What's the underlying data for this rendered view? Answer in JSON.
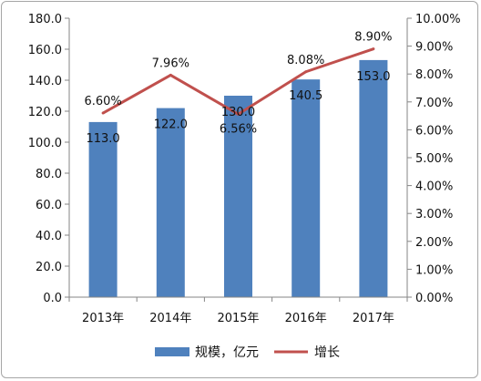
{
  "chart_data": {
    "type": "bar",
    "categories": [
      "2013年",
      "2014年",
      "2015年",
      "2016年",
      "2017年"
    ],
    "series": [
      {
        "name": "规模，亿元",
        "type": "bar",
        "axis": "left",
        "color": "#4f81bd",
        "values": [
          113.0,
          122.0,
          130.0,
          140.5,
          153.0
        ],
        "labels": [
          "113.0",
          "122.0",
          "130.0",
          "140.5",
          "153.0"
        ]
      },
      {
        "name": "增长",
        "type": "line",
        "axis": "right",
        "color": "#c0504d",
        "values": [
          6.6,
          7.96,
          6.56,
          8.08,
          8.9
        ],
        "labels": [
          "6.60%",
          "7.96%",
          "6.56%",
          "8.08%",
          "8.90%"
        ]
      }
    ],
    "y_left": {
      "min": 0,
      "max": 180,
      "ticks": [
        "0.0",
        "20.0",
        "40.0",
        "60.0",
        "80.0",
        "100.0",
        "120.0",
        "140.0",
        "160.0",
        "180.0"
      ]
    },
    "y_right": {
      "min": 0,
      "max": 10,
      "ticks": [
        "0.00%",
        "1.00%",
        "2.00%",
        "3.00%",
        "4.00%",
        "5.00%",
        "6.00%",
        "7.00%",
        "8.00%",
        "9.00%",
        "10.00%"
      ]
    },
    "grid": false,
    "legend_position": "bottom"
  }
}
